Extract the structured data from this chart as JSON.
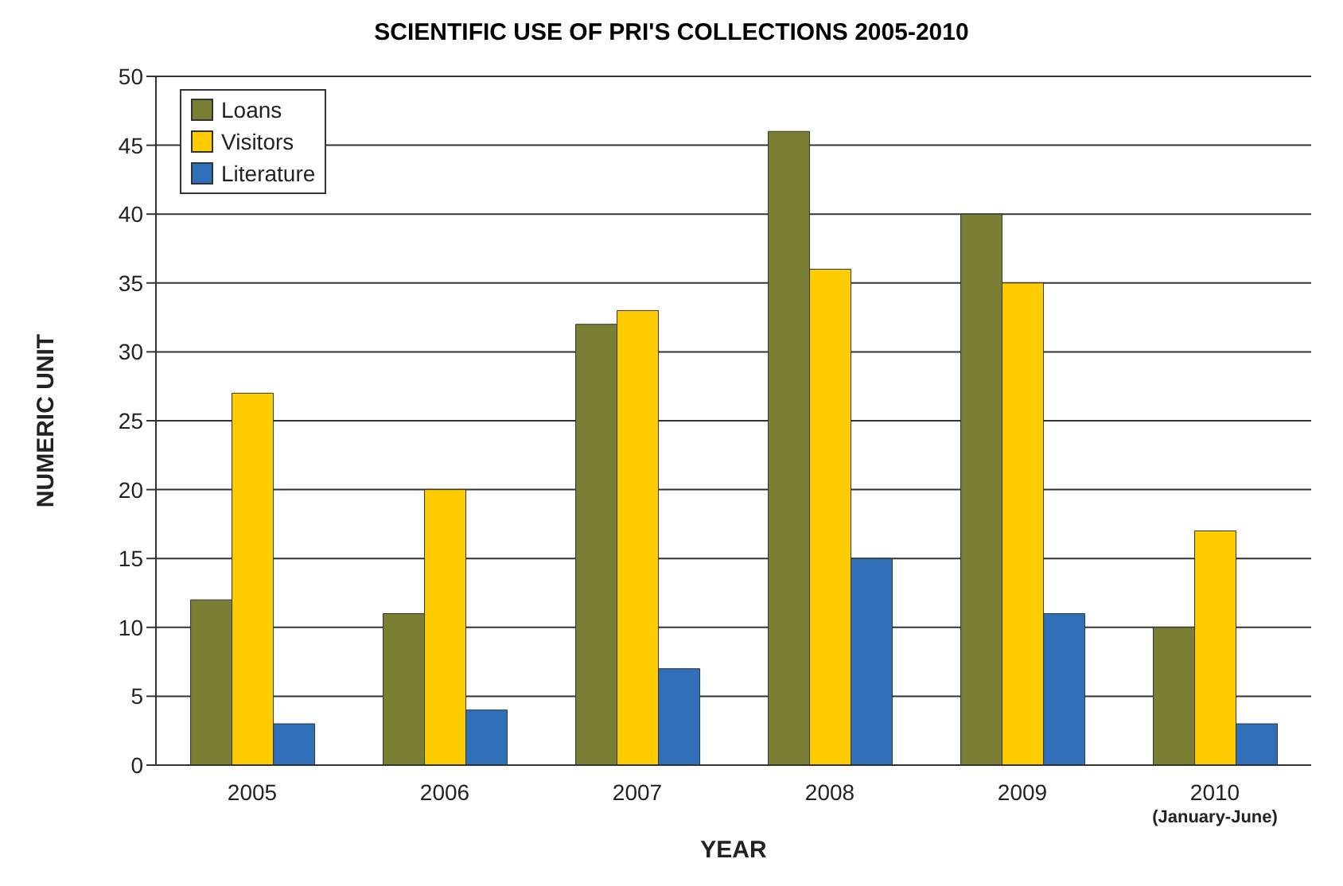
{
  "chart_data": {
    "type": "bar",
    "title": "SCIENTIFIC USE OF PRI'S COLLECTIONS 2005-2010",
    "xlabel": "YEAR",
    "ylabel": "NUMERIC UNIT",
    "categories": [
      "2005",
      "2006",
      "2007",
      "2008",
      "2009",
      "2010\n(January-June)"
    ],
    "series": [
      {
        "name": "Loans",
        "color": "#7b7f34",
        "values": [
          12,
          11,
          32,
          46,
          40,
          10
        ]
      },
      {
        "name": "Visitors",
        "color": "#ffcc00",
        "values": [
          27,
          20,
          33,
          36,
          35,
          17
        ]
      },
      {
        "name": "Literature",
        "color": "#2f6fba",
        "values": [
          3,
          4,
          7,
          15,
          11,
          3
        ]
      }
    ],
    "ylim": [
      0,
      50
    ],
    "yticks": [
      0,
      5,
      10,
      15,
      20,
      25,
      30,
      35,
      40,
      45,
      50
    ],
    "grid": "y",
    "legend": "top left"
  }
}
